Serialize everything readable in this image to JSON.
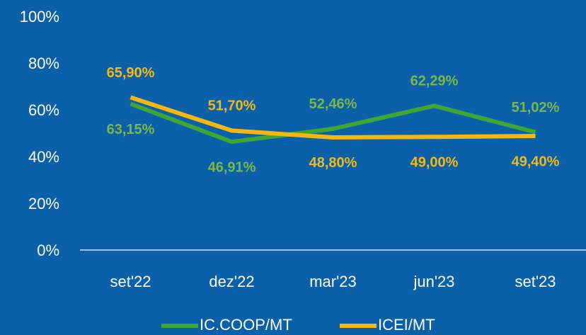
{
  "chart_data": {
    "type": "line",
    "categories": [
      "set'22",
      "dez'22",
      "mar'23",
      "jun'23",
      "set'23"
    ],
    "series": [
      {
        "name": "IC.COOP/MT",
        "color": "#3fa535",
        "label_color": "#7ab648",
        "values": [
          63.15,
          46.91,
          52.46,
          62.29,
          51.02
        ],
        "value_labels": [
          "63,15%",
          "46,91%",
          "52,46%",
          "62,29%",
          "51,02%"
        ]
      },
      {
        "name": "ICEI/MT",
        "color": "#f6b80f",
        "label_color": "#f6b80f",
        "values": [
          65.9,
          51.7,
          48.8,
          49.0,
          49.4
        ],
        "value_labels": [
          "65,90%",
          "51,70%",
          "48,80%",
          "49,00%",
          "49,40%"
        ]
      }
    ],
    "ylim": [
      0,
      100
    ],
    "yticks": [
      {
        "value": 0,
        "label": "0%"
      },
      {
        "value": 20,
        "label": "20%"
      },
      {
        "value": 40,
        "label": "40%"
      },
      {
        "value": 60,
        "label": "60%"
      },
      {
        "value": 80,
        "label": "80%"
      },
      {
        "value": 100,
        "label": "100%"
      }
    ],
    "background": "#0a61a9",
    "legend": "bottom"
  }
}
